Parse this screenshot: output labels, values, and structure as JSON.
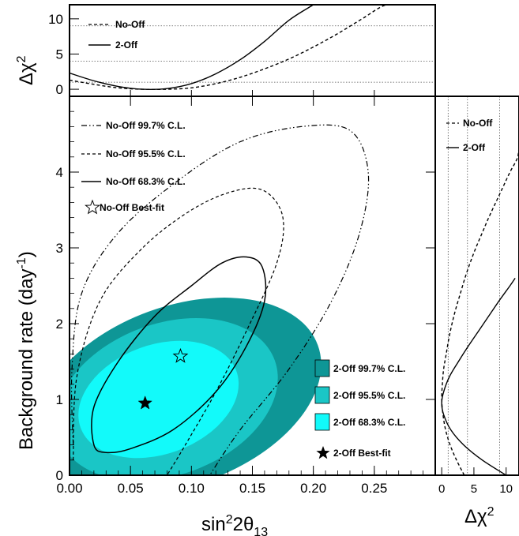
{
  "colors": {
    "fill_997": "#0e9696",
    "fill_955": "#1ac6c6",
    "fill_683": "#12fafa",
    "line": "#000000",
    "guide": "#555555"
  },
  "chart_data": [
    {
      "id": "main",
      "type": "contour",
      "xlabel": "sin²2θ₁₃",
      "ylabel": "Background rate (day⁻¹)",
      "xlim": [
        0,
        0.3
      ],
      "ylim": [
        0,
        5
      ],
      "xticks": [
        "0.00",
        "0.05",
        "0.10",
        "0.15",
        "0.20",
        "0.25"
      ],
      "yticks": [
        "0",
        "1",
        "2",
        "3",
        "4"
      ],
      "two_off_regions": [
        {
          "label": "2-Off 99.7% C.L.",
          "color": "#0e9696",
          "center": [
            0.09,
            1.05
          ],
          "rx": 0.121,
          "ry": 1.18,
          "angle": 2.0
        },
        {
          "label": "2-Off 95.5% C.L.",
          "color": "#1ac6c6",
          "center": [
            0.08,
            1.0
          ],
          "rx": 0.094,
          "ry": 1.0,
          "angle": 2.0
        },
        {
          "label": "2-Off 68.3% C.L.",
          "color": "#12fafa",
          "center": [
            0.073,
            1.0
          ],
          "rx": 0.068,
          "ry": 0.72,
          "angle": 2.0
        }
      ],
      "no_off_contours": [
        {
          "label": "No-Off 99.7% C.L.",
          "style": "dashdot",
          "points": [
            [
              0.003,
              0.4
            ],
            [
              0.002,
              1.4
            ],
            [
              0.01,
              2.4
            ],
            [
              0.04,
              3.2
            ],
            [
              0.09,
              3.9
            ],
            [
              0.14,
              4.4
            ],
            [
              0.19,
              4.6
            ],
            [
              0.23,
              4.55
            ],
            [
              0.245,
              4.0
            ],
            [
              0.238,
              3.2
            ],
            [
              0.215,
              2.3
            ],
            [
              0.18,
              1.4
            ],
            [
              0.14,
              0.6
            ],
            [
              0.115,
              0.0
            ]
          ]
        },
        {
          "label": "No-Off 95.5% C.L.",
          "style": "dashed",
          "points": [
            [
              0.003,
              0.2
            ],
            [
              0.006,
              1.3
            ],
            [
              0.025,
              2.3
            ],
            [
              0.06,
              3.0
            ],
            [
              0.1,
              3.5
            ],
            [
              0.135,
              3.75
            ],
            [
              0.16,
              3.75
            ],
            [
              0.175,
              3.4
            ],
            [
              0.17,
              2.8
            ],
            [
              0.145,
              1.9
            ],
            [
              0.12,
              1.1
            ],
            [
              0.095,
              0.4
            ],
            [
              0.08,
              0.0
            ]
          ]
        },
        {
          "label": "No-Off 68.3% C.L.",
          "style": "solid",
          "points": [
            [
              0.02,
              0.4
            ],
            [
              0.02,
              0.9
            ],
            [
              0.04,
              1.5
            ],
            [
              0.07,
              2.1
            ],
            [
              0.1,
              2.5
            ],
            [
              0.125,
              2.8
            ],
            [
              0.145,
              2.88
            ],
            [
              0.158,
              2.75
            ],
            [
              0.16,
              2.3
            ],
            [
              0.145,
              1.7
            ],
            [
              0.12,
              1.1
            ],
            [
              0.085,
              0.6
            ],
            [
              0.05,
              0.35
            ],
            [
              0.03,
              0.3
            ]
          ]
        }
      ],
      "best_fits": [
        {
          "label": "No-Off Best-fit",
          "x": 0.091,
          "y": 1.57,
          "marker": "open-star"
        },
        {
          "label": "2-Off Best-fit",
          "x": 0.062,
          "y": 0.95,
          "marker": "filled-star"
        }
      ]
    },
    {
      "id": "top",
      "type": "line",
      "ylabel": "Δχ²",
      "xlim": [
        0,
        0.3
      ],
      "ylim": [
        -1,
        12
      ],
      "yticks": [
        "0",
        "5",
        "10"
      ],
      "reference_lines": [
        1,
        4,
        9
      ],
      "series": [
        {
          "name": "No-Off",
          "style": "dashed",
          "x": [
            0.0,
            0.02,
            0.04,
            0.06,
            0.08,
            0.1,
            0.12,
            0.14,
            0.16,
            0.18,
            0.2,
            0.22,
            0.24,
            0.26,
            0.28,
            0.3
          ],
          "y": [
            1.3,
            0.7,
            0.2,
            0.0,
            0.0,
            0.2,
            0.8,
            1.7,
            2.9,
            4.3,
            6.0,
            7.9,
            10.0,
            12.0,
            12.0,
            12.0
          ]
        },
        {
          "name": "2-Off",
          "style": "solid",
          "x": [
            0.0,
            0.02,
            0.04,
            0.06,
            0.08,
            0.1,
            0.12,
            0.14,
            0.16,
            0.18,
            0.2
          ],
          "y": [
            2.3,
            1.2,
            0.4,
            0.0,
            0.1,
            0.8,
            2.2,
            4.2,
            6.8,
            9.8,
            12.0
          ]
        }
      ]
    },
    {
      "id": "right",
      "type": "line",
      "xlabel": "Δχ²",
      "xlim": [
        -1,
        12
      ],
      "ylim": [
        0,
        5
      ],
      "xticks": [
        "0",
        "5",
        "10"
      ],
      "reference_lines": [
        1,
        4,
        9
      ],
      "series": [
        {
          "name": "No-Off",
          "style": "dashed",
          "y": [
            0.0,
            0.2,
            0.4,
            0.6,
            0.8,
            1.0,
            1.2,
            1.4,
            1.6,
            1.8,
            2.0,
            2.2,
            2.4,
            2.6,
            2.8,
            3.0,
            3.2,
            3.4,
            3.6,
            3.8,
            4.0,
            4.2,
            4.4
          ],
          "x": [
            3.5,
            2.3,
            1.3,
            0.6,
            0.2,
            0.0,
            0.1,
            0.3,
            0.7,
            1.1,
            1.6,
            2.2,
            2.9,
            3.6,
            4.4,
            5.3,
            6.3,
            7.3,
            8.4,
            9.5,
            10.6,
            11.8,
            12.0
          ]
        },
        {
          "name": "2-Off",
          "style": "solid",
          "y": [
            0.0,
            0.2,
            0.4,
            0.6,
            0.8,
            0.95,
            1.1,
            1.3,
            1.5,
            1.7,
            1.9,
            2.1,
            2.3,
            2.5,
            2.6
          ],
          "x": [
            10.0,
            6.3,
            3.4,
            1.4,
            0.3,
            0.0,
            0.3,
            1.2,
            2.6,
            4.1,
            5.7,
            7.3,
            8.9,
            10.6,
            11.4
          ]
        }
      ]
    }
  ],
  "main_legend": {
    "no_off_997": "No-Off 99.7% C.L.",
    "no_off_955": "No-Off 95.5% C.L.",
    "no_off_683": "No-Off 68.3% C.L.",
    "no_off_best": "No-Off Best-fit",
    "two_off_997": "2-Off 99.7% C.L.",
    "two_off_955": "2-Off 95.5% C.L.",
    "two_off_683": "2-Off 68.3% C.L.",
    "two_off_best": "2-Off Best-fit"
  },
  "top_legend": {
    "no_off": "No-Off",
    "two_off": "2-Off"
  },
  "right_legend": {
    "no_off": "No-Off",
    "two_off": "2-Off"
  },
  "labels": {
    "x_main": "sin",
    "x_sup": "2",
    "x_theta": "2θ",
    "x_sub": "13",
    "y_main": "Background rate (day",
    "y_sup": "-1",
    "y_close": ")",
    "dchi": "Δχ",
    "dchi_sup": "2"
  }
}
